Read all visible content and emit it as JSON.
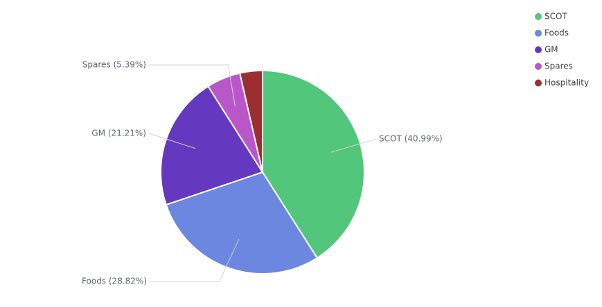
{
  "chart_data": {
    "type": "pie",
    "categories": [
      "SCOT",
      "Foods",
      "GM",
      "Spares",
      "Hospitality"
    ],
    "values": [
      40.99,
      28.82,
      21.21,
      5.39,
      3.59
    ],
    "value_labels": [
      "SCOT (40.99%)",
      "Foods (28.82%)",
      "GM (21.21%)",
      "Spares (5.39%)",
      null
    ],
    "colors": [
      "#52c67a",
      "#6b87e0",
      "#6439c0",
      "#b957c8",
      "#9b2f2f"
    ],
    "legend": "top-right"
  }
}
